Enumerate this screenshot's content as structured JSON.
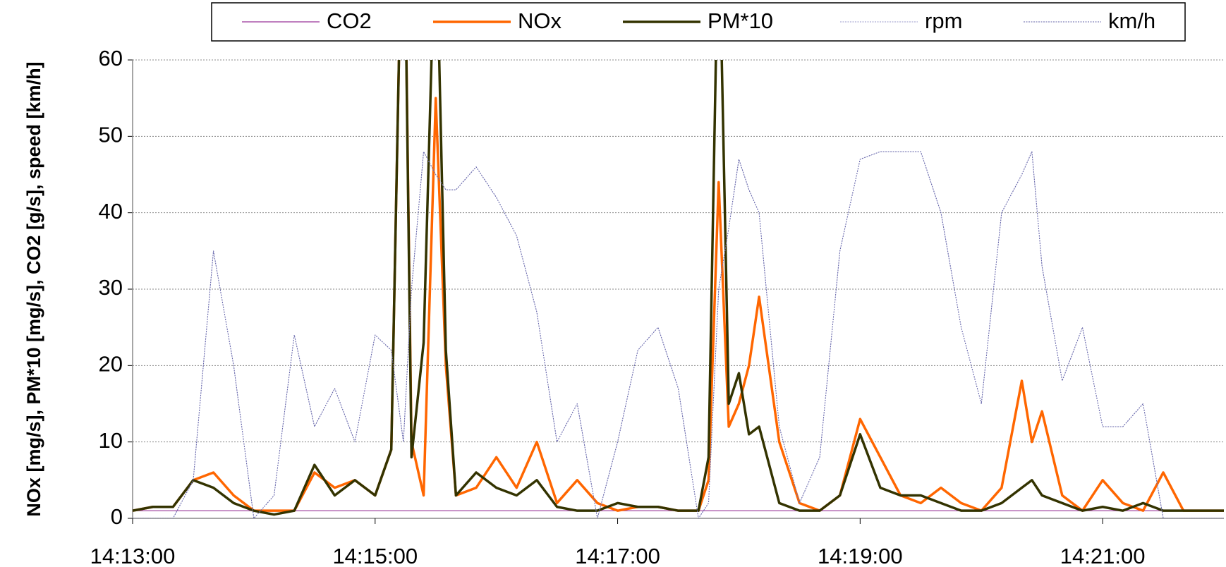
{
  "chart_data": {
    "type": "line",
    "y_label": "NOx [mg/s], PM*10 [mg/s], CO2 [g/s], speed [km/h]",
    "x": [
      "14:13:00",
      "14:13:10",
      "14:13:20",
      "14:13:30",
      "14:13:40",
      "14:13:50",
      "14:14:00",
      "14:14:10",
      "14:14:20",
      "14:14:30",
      "14:14:40",
      "14:14:50",
      "14:15:00",
      "14:15:08",
      "14:15:14",
      "14:15:18",
      "14:15:24",
      "14:15:30",
      "14:15:35",
      "14:15:40",
      "14:15:50",
      "14:16:00",
      "14:16:10",
      "14:16:20",
      "14:16:30",
      "14:16:40",
      "14:16:50",
      "14:17:00",
      "14:17:10",
      "14:17:20",
      "14:17:30",
      "14:17:40",
      "14:17:45",
      "14:17:50",
      "14:17:55",
      "14:18:00",
      "14:18:05",
      "14:18:10",
      "14:18:20",
      "14:18:30",
      "14:18:40",
      "14:18:50",
      "14:19:00",
      "14:19:10",
      "14:19:20",
      "14:19:30",
      "14:19:40",
      "14:19:50",
      "14:20:00",
      "14:20:10",
      "14:20:20",
      "14:20:25",
      "14:20:30",
      "14:20:40",
      "14:20:50",
      "14:21:00",
      "14:21:10",
      "14:21:20",
      "14:21:30",
      "14:21:40",
      "14:21:50",
      "14:22:00"
    ],
    "series": [
      {
        "name": "CO2",
        "color": "#993399",
        "style": "thin",
        "values": [
          1,
          1,
          1,
          1,
          1,
          1,
          1,
          1,
          1,
          1,
          1,
          1,
          1,
          1,
          1,
          1,
          1,
          1,
          1,
          1,
          1,
          1,
          1,
          1,
          1,
          1,
          1,
          1,
          1,
          1,
          1,
          1,
          1,
          1,
          1,
          1,
          1,
          1,
          1,
          1,
          1,
          1,
          1,
          1,
          1,
          1,
          1,
          1,
          1,
          1,
          1,
          1,
          1,
          1,
          1,
          1,
          1,
          1,
          1,
          1,
          1,
          1
        ]
      },
      {
        "name": "NOx",
        "color": "#ff6600",
        "style": "thick",
        "values": [
          1,
          1.5,
          1.5,
          5,
          6,
          3,
          1,
          1,
          1,
          6,
          4,
          5,
          3,
          9,
          90,
          10,
          3,
          55,
          20,
          3,
          4,
          8,
          4,
          10,
          2,
          5,
          2,
          1,
          1.5,
          1.5,
          1,
          1,
          5,
          44,
          12,
          15,
          20,
          29,
          10,
          2,
          1,
          3,
          13,
          8,
          3,
          2,
          4,
          2,
          1,
          4,
          18,
          10,
          14,
          3,
          1,
          5,
          2,
          1,
          6,
          1,
          1,
          1
        ]
      },
      {
        "name": "PM*10",
        "color": "#333300",
        "style": "thick",
        "values": [
          1,
          1.5,
          1.5,
          5,
          4,
          2,
          1,
          0.5,
          1,
          7,
          3,
          5,
          3,
          9,
          90,
          8,
          23,
          80,
          22,
          3,
          6,
          4,
          3,
          5,
          1.5,
          1,
          1,
          2,
          1.5,
          1.5,
          1,
          1,
          8,
          80,
          15,
          19,
          11,
          12,
          2,
          1,
          1,
          3,
          11,
          4,
          3,
          3,
          2,
          1,
          1,
          2,
          4,
          5,
          3,
          2,
          1,
          1.5,
          1,
          2,
          1,
          1,
          1,
          1
        ]
      },
      {
        "name": "rpm",
        "color": "#9999cc",
        "style": "dotted",
        "values": [
          0,
          0,
          0,
          5,
          35,
          20,
          0,
          3,
          24,
          12,
          17,
          10,
          24,
          22,
          10,
          30,
          48,
          45,
          43,
          43,
          46,
          42,
          37,
          27,
          10,
          15,
          0,
          10,
          22,
          25,
          17,
          0,
          2,
          30,
          38,
          47,
          43,
          40,
          12,
          2,
          8,
          35,
          47,
          48,
          48,
          48,
          40,
          25,
          15,
          40,
          45,
          48,
          33,
          18,
          25,
          12,
          12,
          15,
          0,
          0,
          0,
          0
        ]
      },
      {
        "name": "km/h",
        "color": "#6666aa",
        "style": "dotted",
        "values": [
          0,
          0,
          0,
          5,
          35,
          20,
          0,
          3,
          24,
          12,
          17,
          10,
          24,
          22,
          10,
          30,
          48,
          45,
          43,
          43,
          46,
          42,
          37,
          27,
          10,
          15,
          0,
          10,
          22,
          25,
          17,
          0,
          2,
          30,
          38,
          47,
          43,
          40,
          12,
          2,
          8,
          35,
          47,
          48,
          48,
          48,
          40,
          25,
          15,
          40,
          45,
          48,
          33,
          18,
          25,
          12,
          12,
          15,
          0,
          0,
          0,
          0
        ]
      }
    ],
    "xlim": [
      "14:13:00",
      "14:22:00"
    ],
    "xticks": [
      "14:13:00",
      "14:15:00",
      "14:17:00",
      "14:19:00",
      "14:21:00"
    ],
    "ylim": [
      0,
      60
    ],
    "yticks": [
      0,
      10,
      20,
      30,
      40,
      50,
      60
    ],
    "grid": true,
    "legend": "top"
  }
}
